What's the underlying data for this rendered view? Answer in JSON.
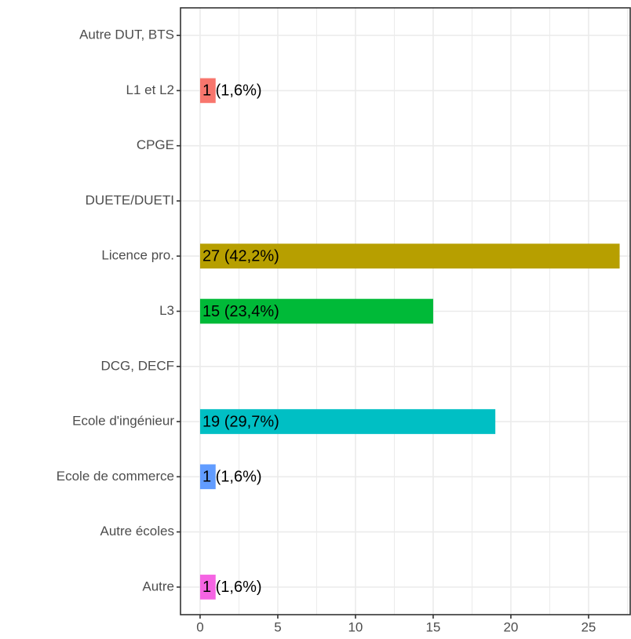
{
  "chart_data": {
    "type": "barh",
    "categories": [
      "Autre DUT, BTS",
      "L1 et L2",
      "CPGE",
      "DUETE/DUETI",
      "Licence pro.",
      "L3",
      "DCG, DECF",
      "Ecole d'ingénieur",
      "Ecole de commerce",
      "Autre écoles",
      "Autre"
    ],
    "values": [
      null,
      1,
      null,
      null,
      27,
      15,
      null,
      19,
      1,
      null,
      1
    ],
    "value_labels": [
      null,
      "1 (1,6%)",
      null,
      null,
      "27 (42,2%)",
      "15 (23,4%)",
      null,
      "19 (29,7%)",
      "1 (1,6%)",
      null,
      "1 (1,6%)"
    ],
    "colors": [
      null,
      "#F8766D",
      null,
      null,
      "#B79F00",
      "#00BA38",
      null,
      "#00BFC4",
      "#619CFF",
      null,
      "#F564E3"
    ],
    "xlim": [
      -1.26,
      27.68
    ],
    "xticks": [
      0,
      5,
      10,
      15,
      20,
      25
    ],
    "xminor": [
      2.5,
      7.5,
      12.5,
      17.5,
      22.5,
      27.5
    ],
    "grid": true
  }
}
